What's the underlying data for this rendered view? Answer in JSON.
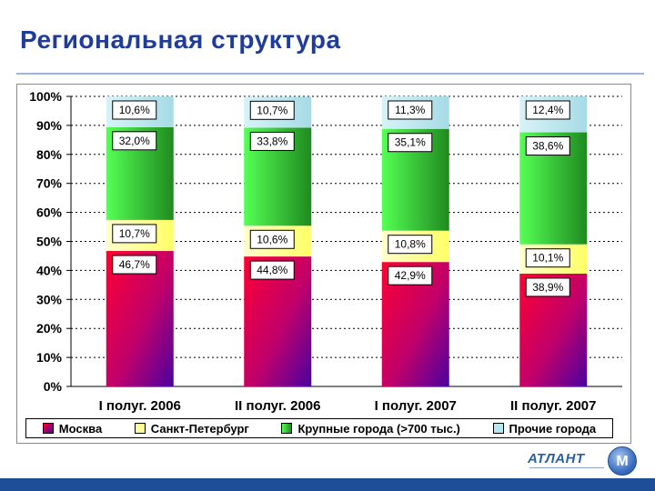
{
  "page": {
    "title": "Региональная структура"
  },
  "logo": {
    "text": "АТЛАНТ",
    "mark": "М",
    "icon": "atlant-globe-icon"
  },
  "colors": {
    "moscow": "#e00040",
    "moscow_gradient_end": "#5a0099",
    "spb": "#ffff99",
    "cities": "#33dd33",
    "cities_dark": "#2a9a2a",
    "other": "#b7e6ee",
    "title": "#1f3c9b",
    "footer": "#1f4e99"
  },
  "chart_data": {
    "type": "bar",
    "stacked": true,
    "categories": [
      "I полуг. 2006",
      "II полуг. 2006",
      "I полуг. 2007",
      "II полуг. 2007"
    ],
    "series": [
      {
        "name": "Москва",
        "values": [
          46.7,
          44.8,
          42.9,
          38.9
        ],
        "labels": [
          "46,7%",
          "44,8%",
          "42,9%",
          "38,9%"
        ]
      },
      {
        "name": "Санкт-Петербург",
        "values": [
          10.7,
          10.6,
          10.8,
          10.1
        ],
        "labels": [
          "10,7%",
          "10,6%",
          "10,8%",
          "10,1%"
        ]
      },
      {
        "name": "Крупные города (>700 тыс.)",
        "values": [
          32.0,
          33.8,
          35.1,
          38.6
        ],
        "labels": [
          "32,0%",
          "33,8%",
          "35,1%",
          "38,6%"
        ]
      },
      {
        "name": "Прочие города",
        "values": [
          10.6,
          10.7,
          11.3,
          12.4
        ],
        "labels": [
          "10,6%",
          "10,7%",
          "11,3%",
          "12,4%"
        ]
      }
    ],
    "ylim": [
      0,
      100
    ],
    "yticks": [
      "0%",
      "10%",
      "20%",
      "30%",
      "40%",
      "50%",
      "60%",
      "70%",
      "80%",
      "90%",
      "100%"
    ],
    "grid": true,
    "legend_position": "bottom"
  }
}
